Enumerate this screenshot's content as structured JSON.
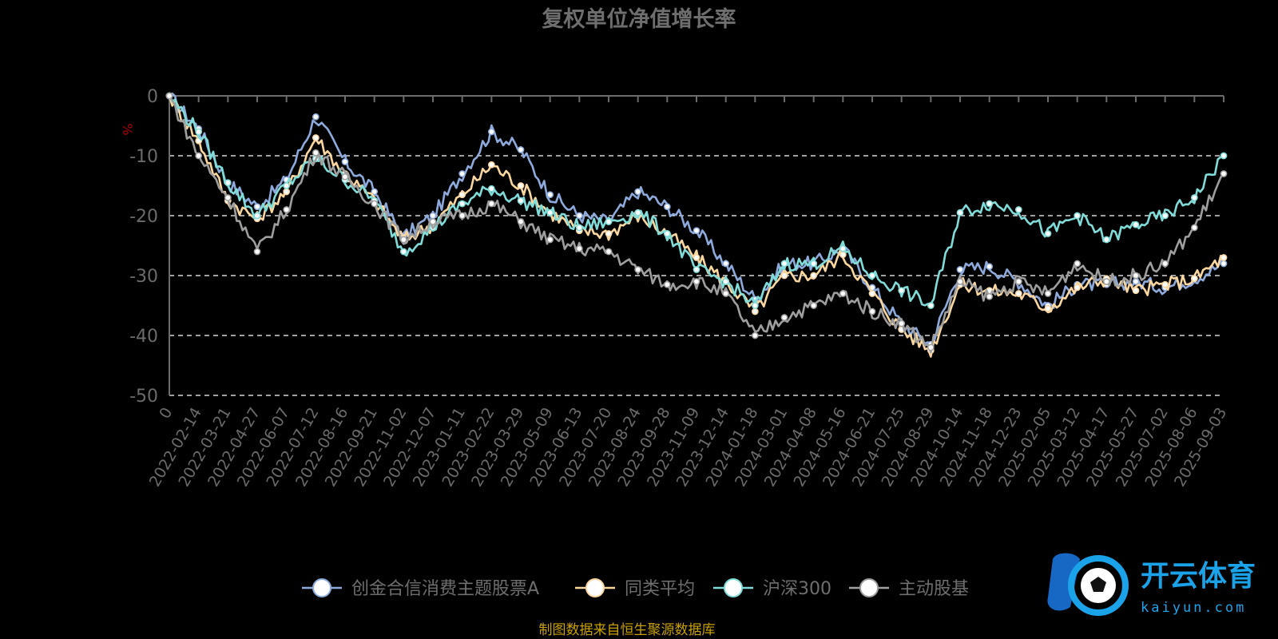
{
  "chart_data": {
    "type": "line",
    "title": "复权单位净值增长率",
    "ylabel": "%",
    "xlabel": "",
    "ylim": [
      -50,
      0
    ],
    "yticks": [
      0,
      -10,
      -20,
      -30,
      -40,
      -50
    ],
    "grid": true,
    "legend_position": "bottom",
    "x": [
      "0",
      "2022-02-14",
      "2022-03-21",
      "2022-04-27",
      "2022-06-07",
      "2022-07-12",
      "2022-08-16",
      "2022-09-21",
      "2022-11-02",
      "2022-12-07",
      "2023-01-11",
      "2023-02-22",
      "2023-03-29",
      "2023-05-09",
      "2023-06-13",
      "2023-07-20",
      "2023-08-24",
      "2023-09-28",
      "2023-11-09",
      "2023-12-14",
      "2024-01-18",
      "2024-03-01",
      "2024-04-08",
      "2024-05-16",
      "2024-06-21",
      "2024-07-25",
      "2024-08-29",
      "2024-10-14",
      "2024-11-18",
      "2024-12-23",
      "2025-02-05",
      "2025-03-12",
      "2025-04-17",
      "2025-05-27",
      "2025-07-02",
      "2025-08-06",
      "2025-09-03"
    ],
    "series": [
      {
        "name": "创金合信消费主题股票A",
        "color": "#8eaadc",
        "values": [
          0,
          -5.5,
          -14.5,
          -18.5,
          -14,
          -3.5,
          -11,
          -16,
          -23.5,
          -20,
          -13,
          -6,
          -9,
          -16.5,
          -20,
          -21,
          -16,
          -18.5,
          -22.5,
          -28,
          -34,
          -28,
          -28,
          -25.5,
          -32,
          -38,
          -41.5,
          -29,
          -28.5,
          -31,
          -35,
          -31.5,
          -31.5,
          -31,
          -32,
          -30.5,
          -28
        ]
      },
      {
        "name": "同类平均",
        "color": "#fbd7a0",
        "values": [
          0,
          -7.5,
          -17.5,
          -20.5,
          -16,
          -7,
          -13,
          -17.5,
          -24,
          -21.5,
          -16.5,
          -11.5,
          -15,
          -19.5,
          -22.5,
          -23,
          -20,
          -23,
          -27,
          -31,
          -36,
          -30,
          -30,
          -26.5,
          -33,
          -39,
          -42.5,
          -31.5,
          -32.5,
          -33,
          -35.5,
          -32,
          -30.5,
          -32.5,
          -31.5,
          -30.5,
          -27
        ]
      },
      {
        "name": "沪深300",
        "color": "#7fdcd8",
        "values": [
          0,
          -6,
          -14.5,
          -20,
          -15,
          -10.5,
          -14,
          -17.5,
          -26,
          -22,
          -18,
          -15.5,
          -17.5,
          -19.5,
          -22,
          -21,
          -19.5,
          -23,
          -29,
          -31,
          -35,
          -28,
          -28,
          -25.5,
          -30,
          -32.5,
          -35,
          -19.5,
          -18,
          -19,
          -23,
          -20,
          -24,
          -21.5,
          -20,
          -17,
          -10
        ]
      },
      {
        "name": "主动股基",
        "color": "#9e9e9e",
        "values": [
          0,
          -10,
          -17,
          -26,
          -19,
          -9.5,
          -13.5,
          -18,
          -24,
          -21,
          -20,
          -18,
          -21,
          -24,
          -25.5,
          -26,
          -29,
          -31.5,
          -31,
          -33,
          -40,
          -37,
          -35,
          -33,
          -36,
          -38,
          -42,
          -31,
          -33.5,
          -31,
          -33,
          -28,
          -31,
          -30,
          -28,
          -22,
          -13
        ]
      }
    ]
  },
  "legend": {
    "items": [
      "创金合信消费主题股票A",
      "同类平均",
      "沪深300",
      "主动股基"
    ]
  },
  "source_note": "制图数据来自恒生聚源数据库",
  "logo": {
    "name": "开云体育",
    "sub": "kaiyun.com"
  },
  "colors": {
    "axis": "#6b6b6b",
    "grid": "#ffffff",
    "source": "#c8a000",
    "logo": "#1aa3e8"
  }
}
